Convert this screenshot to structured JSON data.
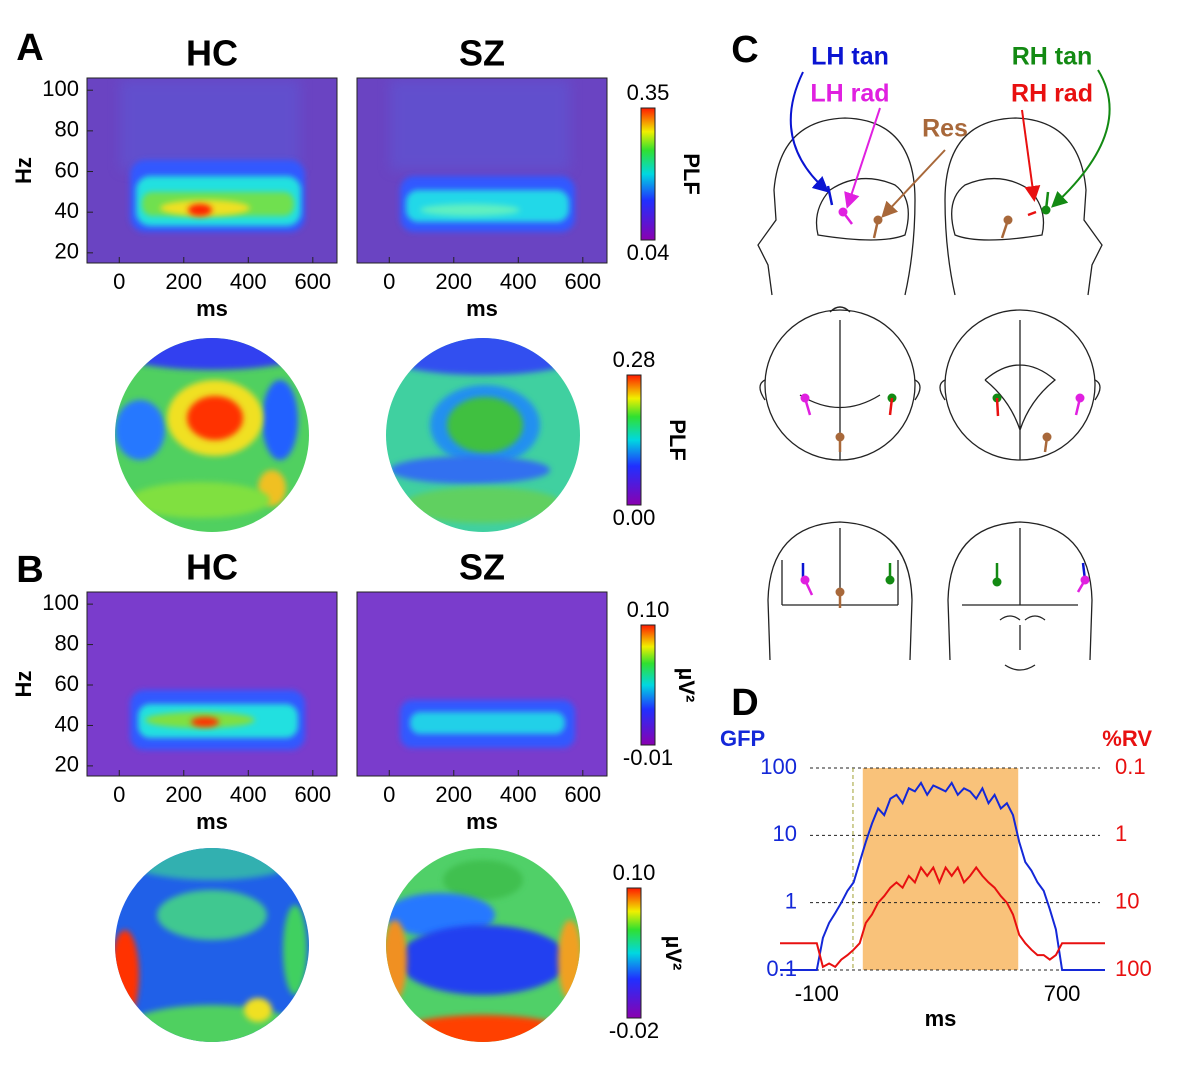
{
  "chart_data": [
    {
      "type": "heatmap",
      "panel": "A",
      "title": "HC",
      "xlabel": "ms",
      "ylabel": "Hz",
      "xlim": [
        -100,
        675
      ],
      "xticks": [
        0,
        200,
        400,
        600
      ],
      "ylim": [
        15,
        106
      ],
      "yticks": [
        20,
        40,
        60,
        80,
        100
      ]
    },
    {
      "type": "heatmap",
      "title": "SZ",
      "xlabel": "ms",
      "xlim": [
        -100,
        675
      ],
      "xticks": [
        0,
        200,
        400,
        600
      ],
      "ylim": [
        15,
        106
      ],
      "colorbar": {
        "label": "PLF",
        "lim": [
          0.04,
          0.35
        ],
        "ticks": [
          0.04,
          0.35
        ]
      }
    },
    {
      "type": "topomap",
      "colorbar": {
        "label": "PLF",
        "lim": [
          0,
          0.28
        ],
        "ticks": [
          {
            "value": 0,
            "label": "0.00"
          },
          0.28
        ]
      }
    },
    {
      "type": "heatmap",
      "panel": "B",
      "title": "HC",
      "xlabel": "ms",
      "ylabel": "Hz",
      "xlim": [
        -100,
        675
      ],
      "xticks": [
        0,
        200,
        400,
        600
      ],
      "ylim": [
        15,
        106
      ],
      "yticks": [
        20,
        40,
        60,
        80,
        100
      ]
    },
    {
      "type": "heatmap",
      "title": "SZ",
      "xlabel": "ms",
      "xlim": [
        -100,
        675
      ],
      "xticks": [
        0,
        200,
        400,
        600
      ],
      "ylim": [
        15,
        106
      ],
      "colorbar": {
        "label": "µV²",
        "lim": [
          -0.01,
          0.1
        ],
        "ticks": [
          -0.01,
          {
            "value": 0.1,
            "label": "0.10"
          }
        ]
      }
    },
    {
      "type": "topomap",
      "colorbar": {
        "label": "µV²",
        "lim": [
          -0.02,
          0.1
        ],
        "ticks": [
          -0.02,
          {
            "value": 0.1,
            "label": "0.10"
          }
        ]
      }
    },
    {
      "type": "diagram",
      "panel": "C",
      "labels": [
        {
          "text": "LH tan",
          "color": "#0a14d2"
        },
        {
          "text": "LH rad",
          "color": "#e020e0"
        },
        {
          "text": "Res",
          "color": "#a8683a"
        },
        {
          "text": "RH tan",
          "color": "#138a13"
        },
        {
          "text": "RH rad",
          "color": "#e81010"
        }
      ]
    },
    {
      "type": "line",
      "panel": "D",
      "xlabel": "ms",
      "ylabel": "GFP",
      "y2label": "%RV",
      "log_scale": true,
      "xlim": [
        -220,
        840
      ],
      "xticks": [
        -100,
        700
      ],
      "ylim": [
        0.1,
        100
      ],
      "yticks": [
        0.1,
        1,
        10,
        100
      ],
      "y2lim": [
        100,
        0.1
      ],
      "y2ticks": [
        100,
        10,
        1,
        0.1
      ],
      "grid": true,
      "highlight_range": [
        50,
        557
      ],
      "highlight_color": "#f9c27a",
      "reference_x": 18,
      "x": [
        -220,
        -200,
        -180,
        -160,
        -140,
        -120,
        -100,
        -80,
        -60,
        -40,
        -20,
        0,
        20,
        40,
        60,
        80,
        100,
        120,
        140,
        160,
        180,
        200,
        220,
        240,
        260,
        280,
        300,
        320,
        340,
        360,
        380,
        400,
        420,
        440,
        460,
        480,
        500,
        520,
        540,
        560,
        580,
        600,
        620,
        640,
        660,
        680,
        700,
        720,
        740,
        760,
        780,
        800,
        820,
        840
      ],
      "series": [
        {
          "name": "GFP",
          "color": "#1428d8",
          "values": [
            0.1,
            0.1,
            0.1,
            0.1,
            0.1,
            0.1,
            0.1,
            0.3,
            0.5,
            0.7,
            1,
            1.5,
            2,
            4,
            8,
            15,
            25,
            20,
            35,
            40,
            30,
            50,
            45,
            60,
            40,
            55,
            50,
            45,
            60,
            40,
            50,
            45,
            35,
            50,
            30,
            40,
            25,
            30,
            20,
            8,
            4,
            3,
            2,
            1.5,
            0.8,
            0.4,
            0.1,
            0.1,
            0.1,
            0.1,
            0.1,
            0.1,
            0.1,
            0.1
          ]
        },
        {
          "name": "%RV",
          "color": "#e81010",
          "axis": "y2",
          "values": [
            40,
            40,
            40,
            40,
            40,
            40,
            40,
            90,
            80,
            90,
            70,
            60,
            50,
            40,
            20,
            15,
            10,
            8,
            6,
            5,
            6,
            4,
            5,
            3,
            4,
            3,
            5,
            3,
            4,
            3,
            5,
            4,
            3,
            4,
            5,
            6,
            8,
            10,
            15,
            30,
            40,
            50,
            60,
            60,
            70,
            60,
            40,
            40,
            40,
            40,
            40,
            40,
            40,
            40
          ]
        }
      ]
    }
  ]
}
